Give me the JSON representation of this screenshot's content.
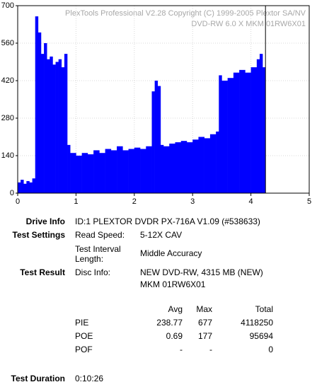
{
  "chart_data": {
    "type": "bar",
    "watermark": [
      "PlexTools Professional V2.28 Copyright (C) 1999-2005 Plextor SA/NV",
      "DVD-RW    6.0 X    MKM 01RW6X01"
    ],
    "x": [
      0,
      0.05,
      0.1,
      0.15,
      0.2,
      0.25,
      0.3,
      0.35,
      0.4,
      0.45,
      0.5,
      0.55,
      0.6,
      0.65,
      0.7,
      0.75,
      0.8,
      0.85,
      0.9,
      1.0,
      1.1,
      1.2,
      1.3,
      1.4,
      1.5,
      1.6,
      1.7,
      1.8,
      1.9,
      2.0,
      2.1,
      2.2,
      2.3,
      2.35,
      2.4,
      2.45,
      2.5,
      2.6,
      2.7,
      2.8,
      2.9,
      3.0,
      3.1,
      3.2,
      3.3,
      3.4,
      3.45,
      3.5,
      3.6,
      3.7,
      3.8,
      3.9,
      4.0,
      4.1,
      4.15,
      4.2
    ],
    "values": [
      40,
      50,
      35,
      45,
      40,
      55,
      660,
      600,
      520,
      560,
      500,
      510,
      480,
      490,
      500,
      470,
      520,
      180,
      150,
      140,
      150,
      145,
      160,
      150,
      165,
      160,
      175,
      160,
      165,
      170,
      165,
      175,
      380,
      420,
      400,
      180,
      175,
      185,
      190,
      195,
      190,
      200,
      210,
      205,
      220,
      230,
      440,
      420,
      430,
      450,
      460,
      450,
      470,
      500,
      520,
      470
    ],
    "color": "#0000ff",
    "end_marker": 4.25,
    "xlim": [
      0,
      5
    ],
    "ylim": [
      0,
      700
    ],
    "xticks": [
      0,
      1,
      2,
      3,
      4,
      5
    ],
    "yticks": [
      0,
      140,
      280,
      420,
      560,
      700
    ],
    "grid": true
  },
  "info": {
    "drive_info": {
      "label": "Drive Info",
      "value": "ID:1 PLEXTOR DVDR PX-716A V1.09 (#538633)"
    },
    "test_settings": {
      "label": "Test Settings",
      "rows": [
        [
          "Read Speed:",
          "5-12X CAV"
        ],
        [
          "Test Interval Length:",
          "Middle Accuracy"
        ]
      ]
    },
    "test_result": {
      "label": "Test Result",
      "disc_info_label": "Disc Info:",
      "disc_info": [
        "NEW DVD-RW, 4315 MB (NEW)",
        "MKM 01RW6X01"
      ]
    },
    "stats": {
      "header": [
        "Avg",
        "Max",
        "Total"
      ],
      "rows": [
        [
          "PIE",
          "238.77",
          "677",
          "4118250"
        ],
        [
          "POE",
          "0.69",
          "177",
          "95694"
        ],
        [
          "POF",
          "-",
          "-",
          "0"
        ]
      ]
    },
    "test_duration": {
      "label": "Test Duration",
      "value": "0:10:26"
    }
  }
}
